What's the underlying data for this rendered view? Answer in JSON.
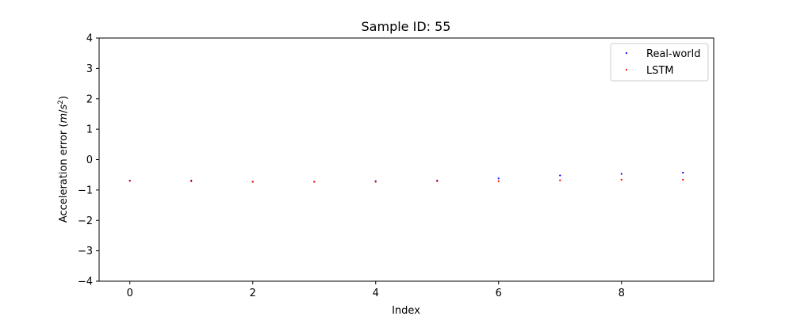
{
  "chart_data": {
    "type": "scatter",
    "title": "Sample ID: 55",
    "xlabel": "Index",
    "ylabel_prefix": "Acceleration error (",
    "ylabel_unit_m": "m",
    "ylabel_unit_slash": "/",
    "ylabel_unit_s": "s",
    "ylabel_unit_exp": "2",
    "ylabel_suffix": ")",
    "xlim": [
      -0.5,
      9.5
    ],
    "ylim": [
      -4,
      4
    ],
    "xticks": [
      0,
      2,
      4,
      6,
      8
    ],
    "xtick_labels": [
      "0",
      "2",
      "4",
      "6",
      "8"
    ],
    "yticks": [
      -4,
      -3,
      -2,
      -1,
      0,
      1,
      2,
      3,
      4
    ],
    "ytick_labels": [
      "−4",
      "−3",
      "−2",
      "−1",
      "0",
      "1",
      "2",
      "3",
      "4"
    ],
    "grid": false,
    "legend_position": "top-right",
    "x": [
      0,
      1,
      2,
      3,
      4,
      5,
      6,
      7,
      8,
      9
    ],
    "series": [
      {
        "name": "Real-world",
        "color": "#0000ff",
        "values": [
          -0.69,
          -0.69,
          -0.73,
          -0.73,
          -0.71,
          -0.69,
          -0.62,
          -0.52,
          -0.47,
          -0.43
        ]
      },
      {
        "name": "LSTM",
        "color": "#ff0000",
        "values": [
          -0.7,
          -0.71,
          -0.73,
          -0.73,
          -0.73,
          -0.71,
          -0.71,
          -0.68,
          -0.66,
          -0.66
        ]
      }
    ]
  }
}
